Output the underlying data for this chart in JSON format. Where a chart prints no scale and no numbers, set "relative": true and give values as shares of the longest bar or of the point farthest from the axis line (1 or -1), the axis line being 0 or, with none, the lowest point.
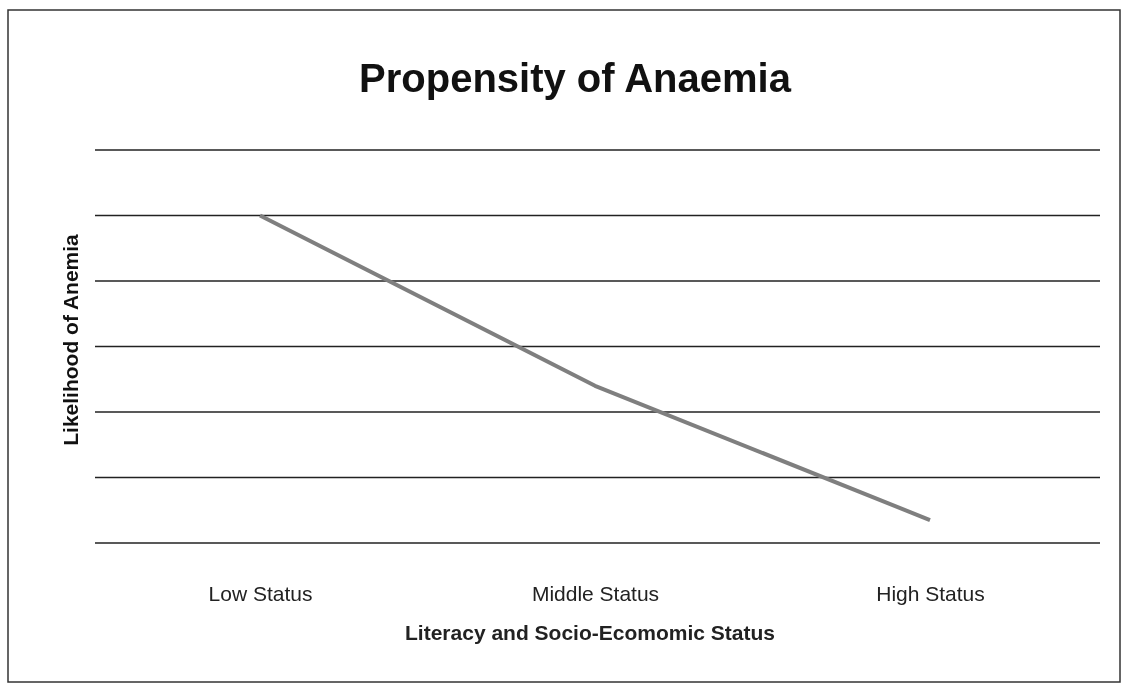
{
  "chart_data": {
    "type": "line",
    "title": "Propensity of Anaemia",
    "xlabel": "Literacy and Socio-Ecomomic  Status",
    "ylabel": "Likelihood of Anemia",
    "categories": [
      "Low Status",
      "Middle Status",
      "High Status"
    ],
    "series": [
      {
        "color": "#7f7f7f",
        "values": [
          1,
          0.48,
          0.07
        ]
      }
    ],
    "relative": true,
    "grid": "y",
    "marker": "none",
    "line_style": "solid"
  }
}
